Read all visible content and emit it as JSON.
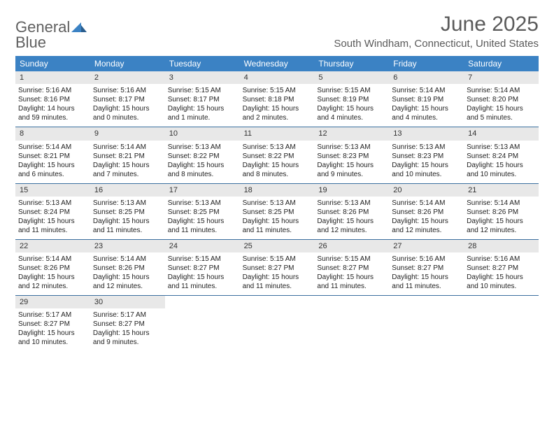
{
  "logo": {
    "word1": "General",
    "word2": "Blue"
  },
  "title": "June 2025",
  "location": "South Windham, Connecticut, United States",
  "colors": {
    "header_bg": "#3b82c4",
    "daynum_bg": "#e8e8e8",
    "week_border": "#3b6fa0",
    "text_gray": "#5a5a5a"
  },
  "dow": [
    "Sunday",
    "Monday",
    "Tuesday",
    "Wednesday",
    "Thursday",
    "Friday",
    "Saturday"
  ],
  "weeks": [
    [
      {
        "n": "1",
        "sr": "5:16 AM",
        "ss": "8:16 PM",
        "dl": "14 hours and 59 minutes."
      },
      {
        "n": "2",
        "sr": "5:16 AM",
        "ss": "8:17 PM",
        "dl": "15 hours and 0 minutes."
      },
      {
        "n": "3",
        "sr": "5:15 AM",
        "ss": "8:17 PM",
        "dl": "15 hours and 1 minute."
      },
      {
        "n": "4",
        "sr": "5:15 AM",
        "ss": "8:18 PM",
        "dl": "15 hours and 2 minutes."
      },
      {
        "n": "5",
        "sr": "5:15 AM",
        "ss": "8:19 PM",
        "dl": "15 hours and 4 minutes."
      },
      {
        "n": "6",
        "sr": "5:14 AM",
        "ss": "8:19 PM",
        "dl": "15 hours and 4 minutes."
      },
      {
        "n": "7",
        "sr": "5:14 AM",
        "ss": "8:20 PM",
        "dl": "15 hours and 5 minutes."
      }
    ],
    [
      {
        "n": "8",
        "sr": "5:14 AM",
        "ss": "8:21 PM",
        "dl": "15 hours and 6 minutes."
      },
      {
        "n": "9",
        "sr": "5:14 AM",
        "ss": "8:21 PM",
        "dl": "15 hours and 7 minutes."
      },
      {
        "n": "10",
        "sr": "5:13 AM",
        "ss": "8:22 PM",
        "dl": "15 hours and 8 minutes."
      },
      {
        "n": "11",
        "sr": "5:13 AM",
        "ss": "8:22 PM",
        "dl": "15 hours and 8 minutes."
      },
      {
        "n": "12",
        "sr": "5:13 AM",
        "ss": "8:23 PM",
        "dl": "15 hours and 9 minutes."
      },
      {
        "n": "13",
        "sr": "5:13 AM",
        "ss": "8:23 PM",
        "dl": "15 hours and 10 minutes."
      },
      {
        "n": "14",
        "sr": "5:13 AM",
        "ss": "8:24 PM",
        "dl": "15 hours and 10 minutes."
      }
    ],
    [
      {
        "n": "15",
        "sr": "5:13 AM",
        "ss": "8:24 PM",
        "dl": "15 hours and 11 minutes."
      },
      {
        "n": "16",
        "sr": "5:13 AM",
        "ss": "8:25 PM",
        "dl": "15 hours and 11 minutes."
      },
      {
        "n": "17",
        "sr": "5:13 AM",
        "ss": "8:25 PM",
        "dl": "15 hours and 11 minutes."
      },
      {
        "n": "18",
        "sr": "5:13 AM",
        "ss": "8:25 PM",
        "dl": "15 hours and 11 minutes."
      },
      {
        "n": "19",
        "sr": "5:13 AM",
        "ss": "8:26 PM",
        "dl": "15 hours and 12 minutes."
      },
      {
        "n": "20",
        "sr": "5:14 AM",
        "ss": "8:26 PM",
        "dl": "15 hours and 12 minutes."
      },
      {
        "n": "21",
        "sr": "5:14 AM",
        "ss": "8:26 PM",
        "dl": "15 hours and 12 minutes."
      }
    ],
    [
      {
        "n": "22",
        "sr": "5:14 AM",
        "ss": "8:26 PM",
        "dl": "15 hours and 12 minutes."
      },
      {
        "n": "23",
        "sr": "5:14 AM",
        "ss": "8:26 PM",
        "dl": "15 hours and 12 minutes."
      },
      {
        "n": "24",
        "sr": "5:15 AM",
        "ss": "8:27 PM",
        "dl": "15 hours and 11 minutes."
      },
      {
        "n": "25",
        "sr": "5:15 AM",
        "ss": "8:27 PM",
        "dl": "15 hours and 11 minutes."
      },
      {
        "n": "26",
        "sr": "5:15 AM",
        "ss": "8:27 PM",
        "dl": "15 hours and 11 minutes."
      },
      {
        "n": "27",
        "sr": "5:16 AM",
        "ss": "8:27 PM",
        "dl": "15 hours and 11 minutes."
      },
      {
        "n": "28",
        "sr": "5:16 AM",
        "ss": "8:27 PM",
        "dl": "15 hours and 10 minutes."
      }
    ],
    [
      {
        "n": "29",
        "sr": "5:17 AM",
        "ss": "8:27 PM",
        "dl": "15 hours and 10 minutes."
      },
      {
        "n": "30",
        "sr": "5:17 AM",
        "ss": "8:27 PM",
        "dl": "15 hours and 9 minutes."
      },
      null,
      null,
      null,
      null,
      null
    ]
  ],
  "labels": {
    "sunrise": "Sunrise:",
    "sunset": "Sunset:",
    "daylight": "Daylight:"
  }
}
